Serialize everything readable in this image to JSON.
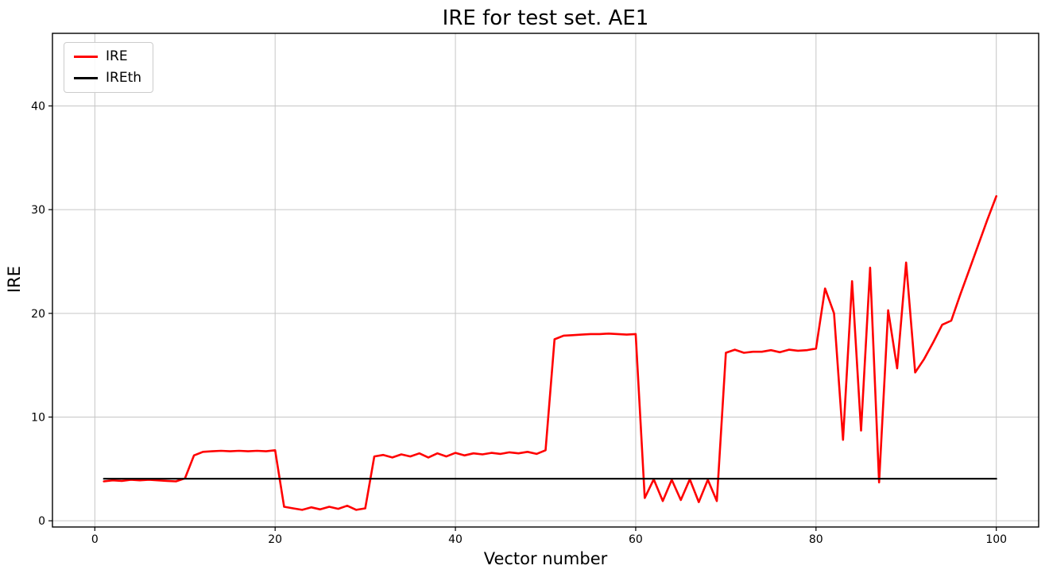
{
  "chart_data": {
    "type": "line",
    "title": "IRE for test set. AE1",
    "xlabel": "Vector number",
    "ylabel": "IRE",
    "xlim": [
      -4.7,
      104.7
    ],
    "ylim": [
      -0.6,
      47.0
    ],
    "xticks": [
      0,
      20,
      40,
      60,
      80,
      100
    ],
    "yticks": [
      0,
      10,
      20,
      30,
      40
    ],
    "grid": true,
    "grid_color": "#c6c6c6",
    "legend": {
      "position": "upper left",
      "entries": [
        {
          "label": "IRE",
          "color": "#ff0000"
        },
        {
          "label": "IREth",
          "color": "#000000"
        }
      ]
    },
    "x": {
      "start": 1,
      "step": 1,
      "count": 100
    },
    "series": [
      {
        "name": "IRE",
        "color": "#ff0000",
        "width": 2.6,
        "values": [
          3.8,
          3.9,
          3.85,
          3.95,
          3.9,
          3.95,
          3.9,
          3.85,
          3.8,
          4.1,
          6.3,
          6.65,
          6.7,
          6.75,
          6.7,
          6.75,
          6.7,
          6.75,
          6.7,
          6.8,
          1.35,
          1.2,
          1.05,
          1.3,
          1.1,
          1.35,
          1.15,
          1.45,
          1.05,
          1.2,
          6.2,
          6.35,
          6.1,
          6.4,
          6.2,
          6.5,
          6.1,
          6.5,
          6.2,
          6.55,
          6.3,
          6.5,
          6.4,
          6.55,
          6.45,
          6.6,
          6.5,
          6.65,
          6.45,
          6.8,
          17.5,
          17.85,
          17.9,
          17.95,
          18.0,
          18.0,
          18.05,
          18.0,
          17.95,
          18.0,
          2.2,
          4.0,
          1.9,
          3.95,
          2.0,
          4.0,
          1.8,
          3.95,
          1.9,
          16.2,
          16.5,
          16.2,
          16.3,
          16.3,
          16.45,
          16.25,
          16.5,
          16.4,
          16.45,
          16.6,
          22.4,
          20.0,
          7.8,
          23.1,
          8.7,
          24.4,
          3.7,
          20.3,
          14.7,
          24.9,
          14.3,
          15.6,
          17.2,
          18.9,
          19.3,
          21.8,
          24.2,
          26.6,
          29.0,
          31.3
        ]
      },
      {
        "name": "IREth",
        "color": "#000000",
        "width": 2.2,
        "constant": 4.05
      }
    ]
  }
}
